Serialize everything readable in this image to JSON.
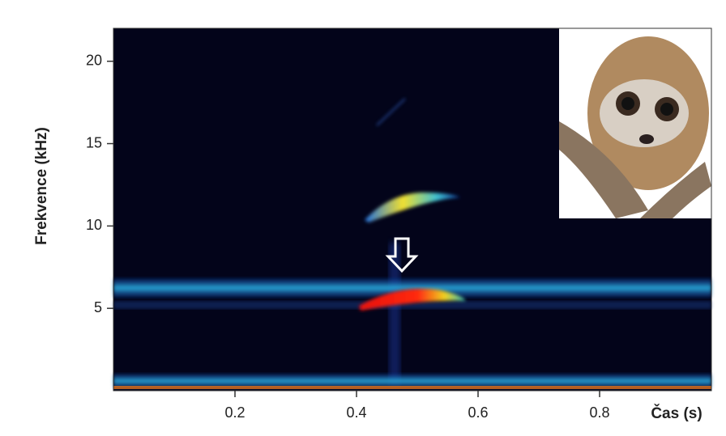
{
  "chart_data": {
    "type": "spectrogram",
    "x_label": "Čas (s)",
    "y_label": "Frekvence (kHz)",
    "xlim": [
      0,
      0.984
    ],
    "xticks": [
      0.2,
      0.4,
      0.6,
      0.8
    ],
    "ylim": [
      0,
      22
    ],
    "yticks": [
      5,
      10,
      15,
      20
    ]
  }
}
